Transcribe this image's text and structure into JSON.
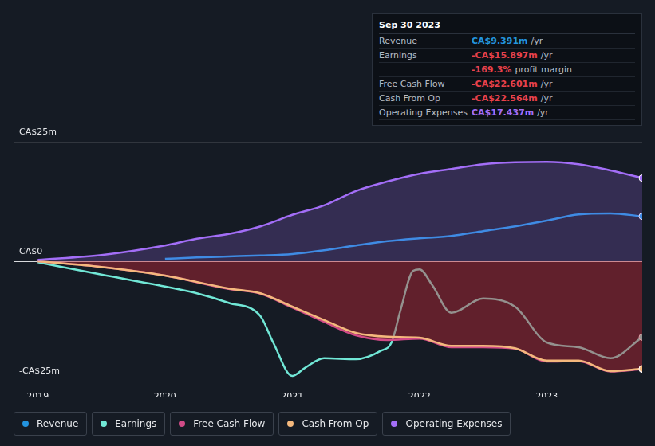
{
  "chart_data": {
    "type": "line",
    "xlim": [
      2018.81,
      2023.75
    ],
    "xticks": [
      2019,
      2020,
      2021,
      2022,
      2023
    ],
    "ylim": [
      -25,
      25
    ],
    "yticks": [
      {
        "value": -25,
        "label": "-CA$25m"
      },
      {
        "value": 0,
        "label": "CA$0"
      },
      {
        "value": 25,
        "label": "CA$25m"
      }
    ],
    "grid": true,
    "legend": "bottom",
    "series": [
      {
        "name": "Revenue",
        "color": "#2394df",
        "x": [
          2020,
          2020.25,
          2020.5,
          2020.75,
          2021,
          2021.25,
          2021.5,
          2021.75,
          2022,
          2022.25,
          2022.5,
          2022.75,
          2023,
          2023.25,
          2023.5,
          2023.75
        ],
        "values": [
          0.5,
          0.8,
          1.0,
          1.2,
          1.5,
          2.3,
          3.3,
          4.2,
          4.8,
          5.3,
          6.3,
          7.3,
          8.5,
          9.8,
          10.0,
          9.4
        ]
      },
      {
        "name": "Earnings",
        "color": "#71e7d6",
        "x": [
          2019,
          2019.5,
          2020,
          2020.25,
          2020.5,
          2020.75,
          2020.85,
          2021,
          2021.1,
          2021.25,
          2021.5,
          2021.7,
          2021.78,
          2021.85,
          2021.95,
          2022,
          2022.1,
          2022.25,
          2022.5,
          2022.75,
          2023,
          2023.25,
          2023.5,
          2023.75
        ],
        "values": [
          -0.2,
          -2.8,
          -5.3,
          -6.7,
          -8.7,
          -11.5,
          -17,
          -24,
          -22.3,
          -20.3,
          -20.5,
          -18.7,
          -17,
          -10.3,
          -2,
          -1.7,
          -5,
          -10.8,
          -7.8,
          -9.5,
          -17,
          -18,
          -20.3,
          -15.9
        ]
      },
      {
        "name": "Free Cash Flow",
        "color": "#d14b87",
        "x": [
          2019,
          2019.5,
          2020,
          2020.5,
          2020.75,
          2021,
          2021.25,
          2021.5,
          2021.75,
          2022,
          2022.25,
          2022.5,
          2022.75,
          2023,
          2023.25,
          2023.5,
          2023.75
        ],
        "values": [
          0,
          -1.2,
          -3.0,
          -5.8,
          -6.8,
          -9.7,
          -12.7,
          -15.5,
          -16.5,
          -16.2,
          -18.0,
          -18.0,
          -18.3,
          -21.0,
          -20.9,
          -23.1,
          -22.6
        ]
      },
      {
        "name": "Cash From Op",
        "color": "#f4b87d",
        "x": [
          2019,
          2019.5,
          2020,
          2020.5,
          2020.75,
          2021,
          2021.25,
          2021.5,
          2021.75,
          2022,
          2022.25,
          2022.5,
          2022.75,
          2023,
          2023.25,
          2023.5,
          2023.75
        ],
        "values": [
          0,
          -1.2,
          -3.0,
          -5.7,
          -6.7,
          -9.5,
          -12.3,
          -15,
          -15.8,
          -16,
          -17.7,
          -17.7,
          -18.2,
          -20.8,
          -20.8,
          -23,
          -22.5
        ]
      },
      {
        "name": "Operating Expenses",
        "color": "#a36ef7",
        "x": [
          2019,
          2019.5,
          2020,
          2020.25,
          2020.5,
          2020.75,
          2021,
          2021.25,
          2021.5,
          2021.75,
          2022,
          2022.25,
          2022.5,
          2022.75,
          2023,
          2023.25,
          2023.5,
          2023.75
        ],
        "values": [
          0.3,
          1.3,
          3.3,
          4.7,
          5.7,
          7.3,
          9.7,
          11.7,
          14.7,
          16.7,
          18.3,
          19.3,
          20.3,
          20.7,
          20.8,
          20.3,
          19.0,
          17.4
        ]
      }
    ],
    "annotation": {
      "title": "Sep 30 2023",
      "rows": [
        {
          "label": "Revenue",
          "value": "CA$9.391m",
          "unit": "/yr",
          "color": "#2394df"
        },
        {
          "label": "Earnings",
          "value": "-CA$15.897m",
          "unit": "/yr",
          "color": "#e8414b"
        },
        {
          "value": "-169.3%",
          "unit": "profit margin",
          "color": "#e8414b"
        },
        {
          "label": "Free Cash Flow",
          "value": "-CA$22.601m",
          "unit": "/yr",
          "color": "#e8414b"
        },
        {
          "label": "Cash From Op",
          "value": "-CA$22.564m",
          "unit": "/yr",
          "color": "#e8414b"
        },
        {
          "label": "Operating Expenses",
          "value": "CA$17.437m",
          "unit": "/yr",
          "color": "#a36ef7"
        }
      ]
    }
  }
}
